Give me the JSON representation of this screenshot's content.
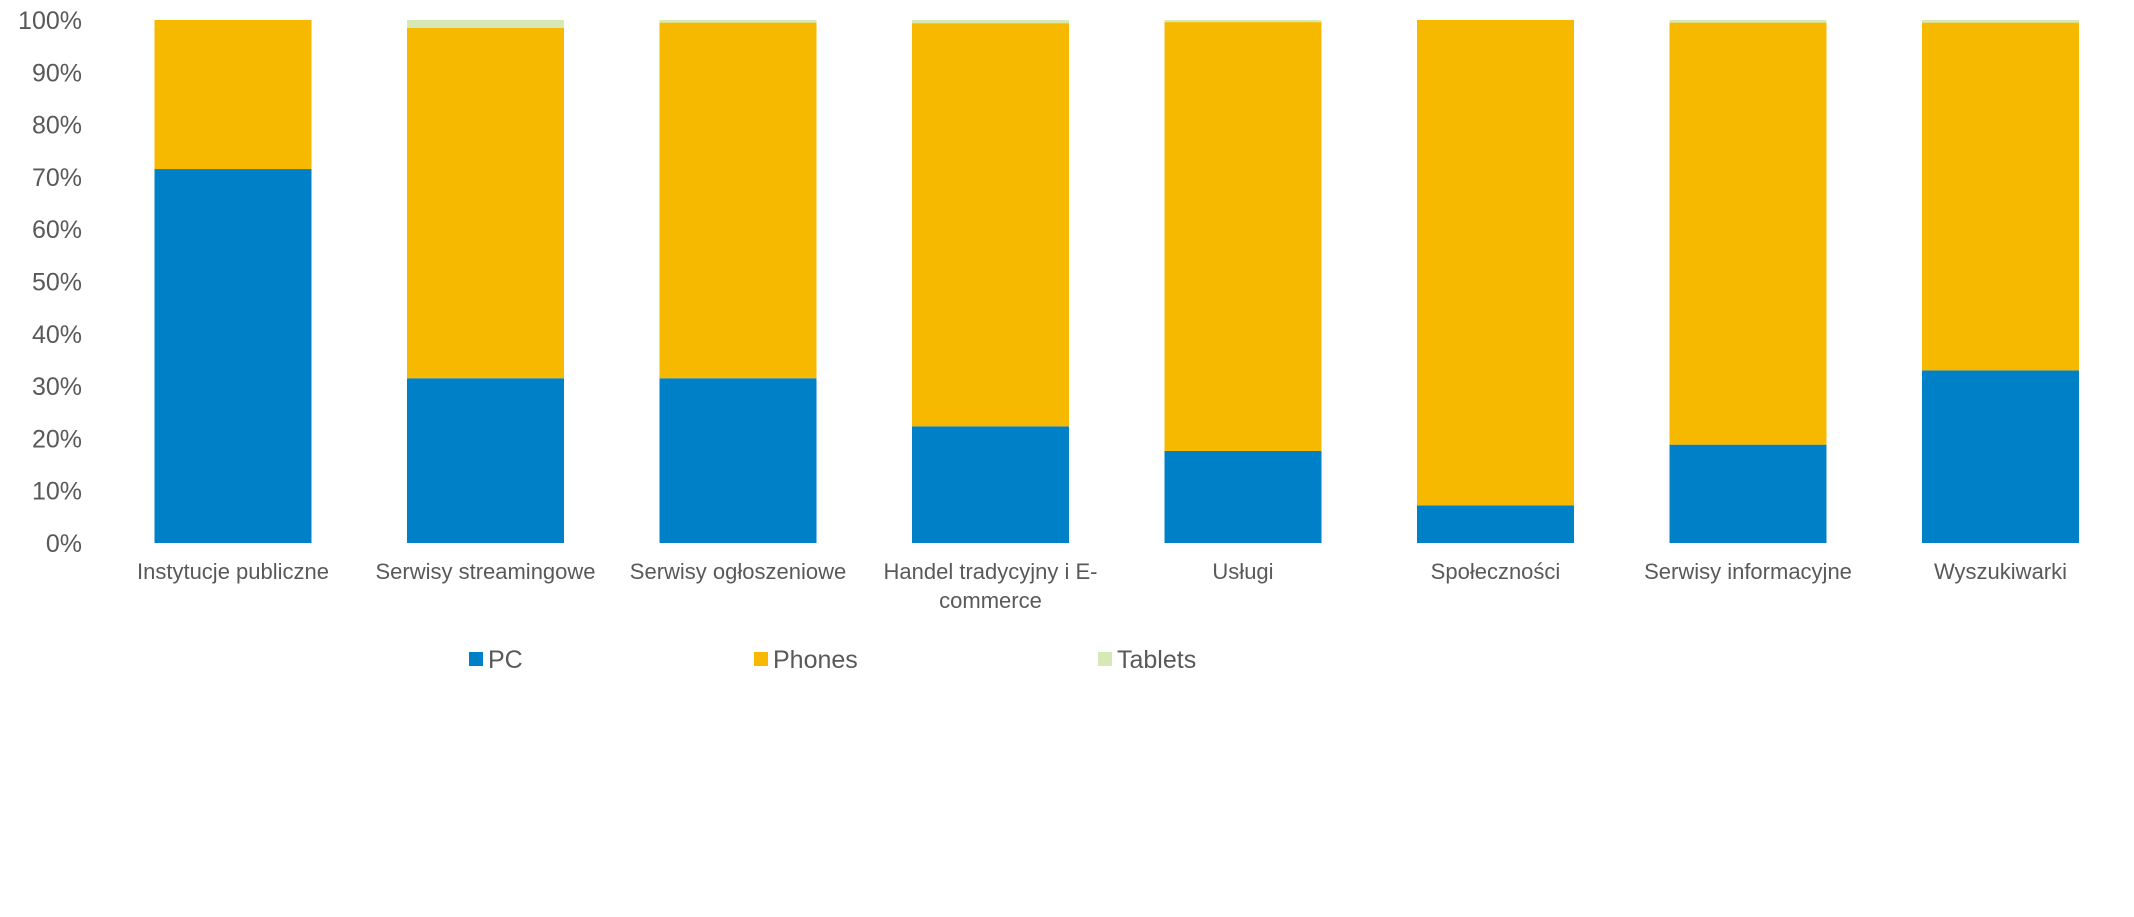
{
  "chart_data": {
    "type": "bar",
    "stacked": true,
    "percent_stacked": true,
    "categories": [
      "Instytucje publiczne",
      "Serwisy streamingowe",
      "Serwisy ogłoszeniowe",
      "Handel tradycyjny i E-commerce",
      "Usługi",
      "Społeczności",
      "Serwisy informacyjne",
      "Wyszukiwarki"
    ],
    "category_label_lines": [
      [
        "Instytucje publiczne"
      ],
      [
        "Serwisy streamingowe"
      ],
      [
        "Serwisy ogłoszeniowe"
      ],
      [
        "Handel tradycyjny i E-",
        "commerce"
      ],
      [
        "Usługi"
      ],
      [
        "Społeczności"
      ],
      [
        "Serwisy informacyjne"
      ],
      [
        "Wyszukiwarki"
      ]
    ],
    "series": [
      {
        "name": "PC",
        "color": "#0080C6",
        "values": [
          71.5,
          31.5,
          31.5,
          22.3,
          17.6,
          7.2,
          18.8,
          33.0
        ]
      },
      {
        "name": "Phones",
        "color": "#F7B900",
        "values": [
          28.5,
          67.0,
          68.0,
          77.1,
          82.0,
          92.8,
          80.7,
          66.5
        ]
      },
      {
        "name": "Tablets",
        "color": "#D5E8B5",
        "values": [
          0.0,
          1.5,
          0.5,
          0.6,
          0.4,
          0.0,
          0.5,
          0.5
        ]
      }
    ],
    "y_ticks": [
      "0%",
      "10%",
      "20%",
      "30%",
      "40%",
      "50%",
      "60%",
      "70%",
      "80%",
      "90%",
      "100%"
    ],
    "ylim": [
      0,
      100
    ],
    "grid": false,
    "legend_position": "bottom",
    "title": "",
    "xlabel": "",
    "ylabel": ""
  }
}
